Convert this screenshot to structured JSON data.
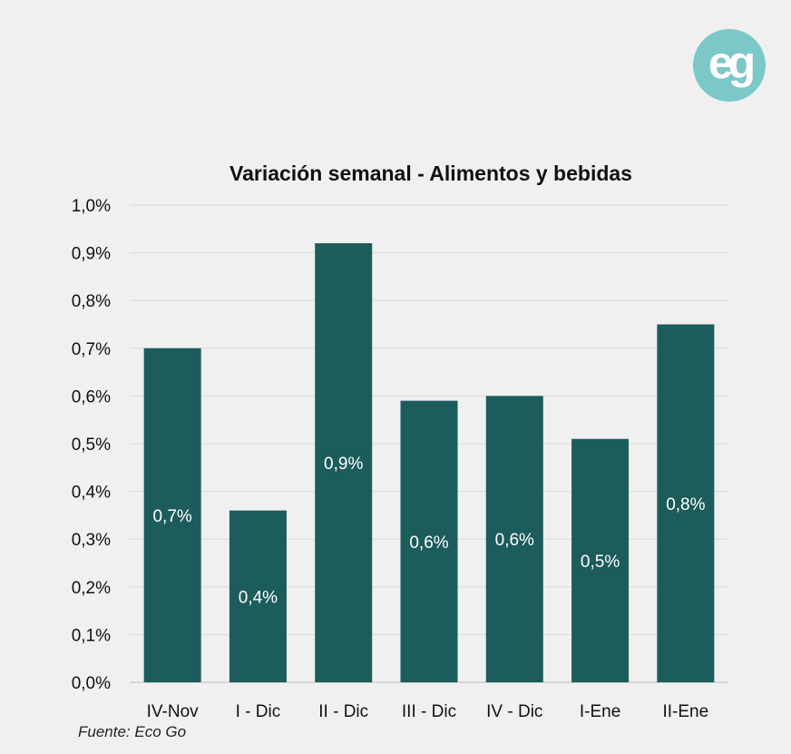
{
  "logo": {
    "text": "eg",
    "color": "#7cc8c8"
  },
  "source": "Fuente: Eco Go",
  "chart_data": {
    "type": "bar",
    "title": "Variación semanal - Alimentos y bebidas",
    "categories": [
      "IV-Nov",
      "I - Dic",
      "II - Dic",
      "III - Dic",
      "IV - Dic",
      "I-Ene",
      "II-Ene"
    ],
    "values": [
      0.7,
      0.36,
      0.92,
      0.59,
      0.6,
      0.51,
      0.75
    ],
    "data_labels": [
      "0,7%",
      "0,4%",
      "0,9%",
      "0,6%",
      "0,6%",
      "0,5%",
      "0,8%"
    ],
    "yticks": [
      "0,0%",
      "0,1%",
      "0,2%",
      "0,3%",
      "0,4%",
      "0,5%",
      "0,6%",
      "0,7%",
      "0,8%",
      "0,9%",
      "1,0%"
    ],
    "ylim": [
      0,
      1.0
    ],
    "unit": "%",
    "grid": true,
    "bar_color": "#1c5c5a",
    "xlabel": "",
    "ylabel": ""
  }
}
